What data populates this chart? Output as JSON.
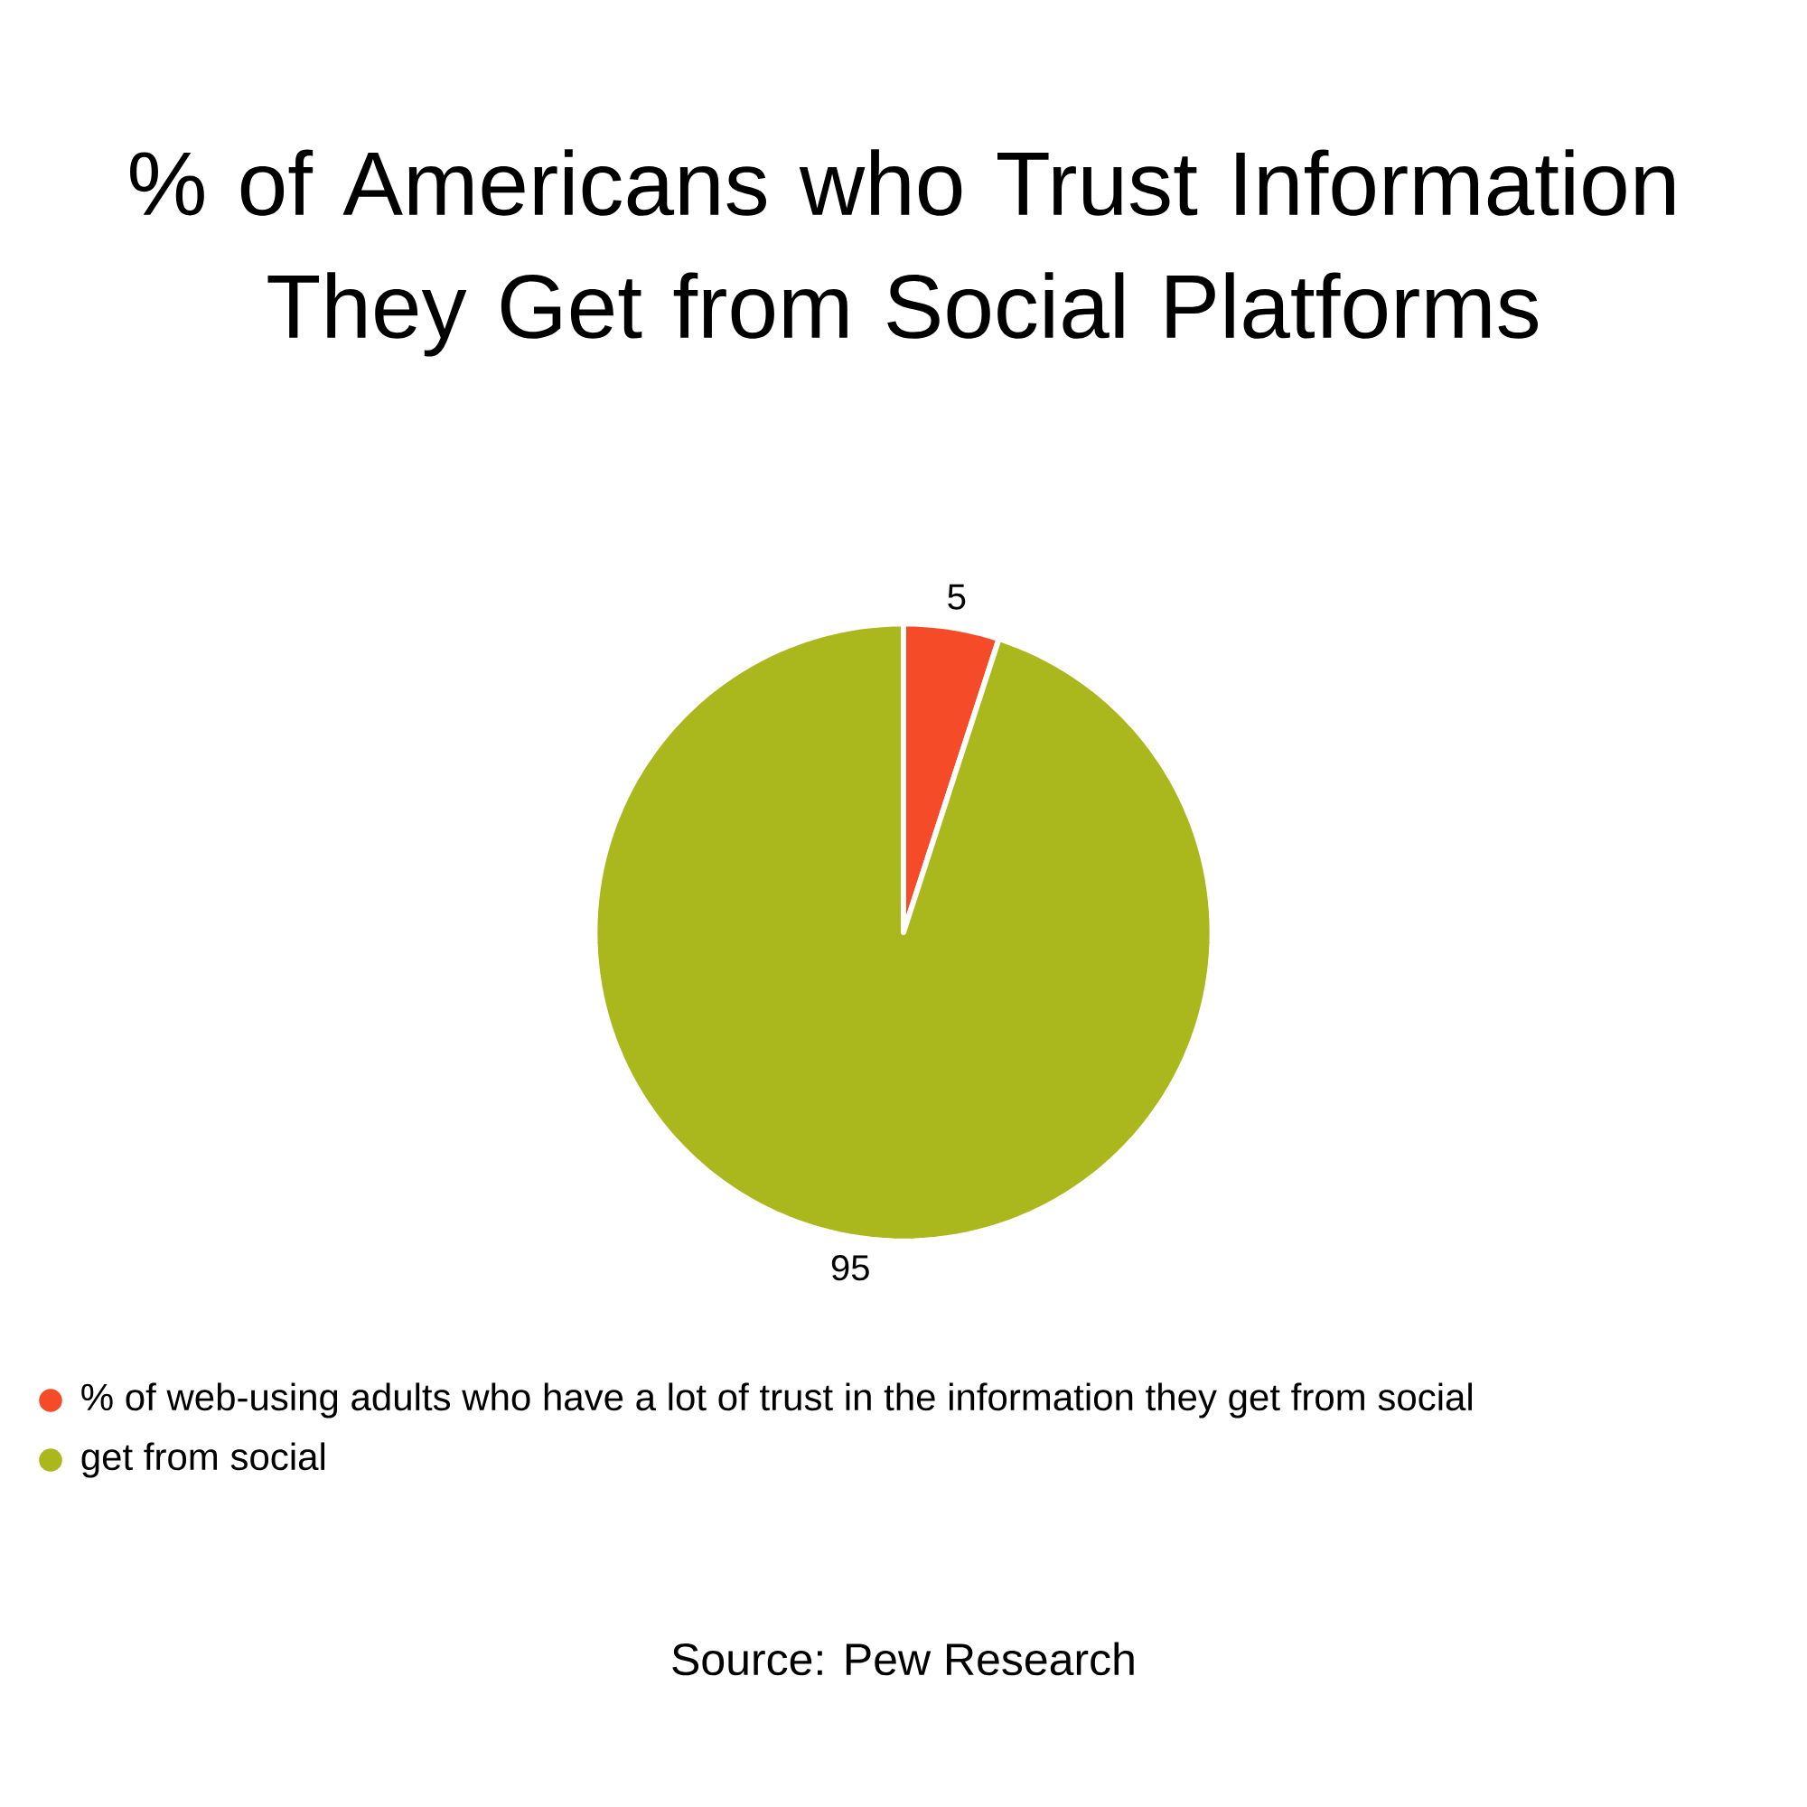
{
  "chart_data": {
    "type": "pie",
    "title": "% of Americans who Trust Information They Get from Social Platforms",
    "categories": [
      "% of web-using adults who have a lot of trust in the information they get from social",
      "get from social"
    ],
    "values": [
      5,
      95
    ],
    "colors": [
      "#f54b28",
      "#aab81e"
    ],
    "data_labels": true,
    "legend": "bottom",
    "annotations": [
      "Source: Pew Research"
    ]
  }
}
